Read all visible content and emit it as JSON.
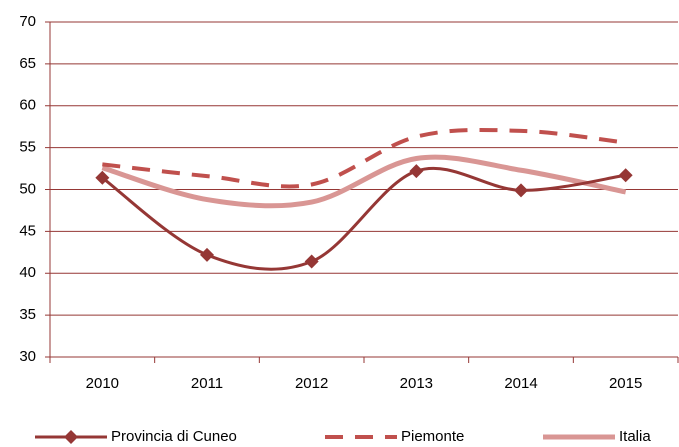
{
  "chart_data": {
    "type": "line",
    "categories": [
      "2010",
      "2011",
      "2012",
      "2013",
      "2014",
      "2015"
    ],
    "series": [
      {
        "name": "Provincia di Cuneo",
        "color": "#953735",
        "style": "solid-diamond",
        "values": [
          51.4,
          42.2,
          41.4,
          52.2,
          49.9,
          51.7
        ]
      },
      {
        "name": "Piemonte",
        "color": "#c0504d",
        "style": "dashed",
        "values": [
          53.0,
          51.6,
          50.6,
          56.3,
          57.0,
          55.6
        ]
      },
      {
        "name": "Italia",
        "color": "#d99694",
        "style": "thick",
        "values": [
          52.6,
          48.8,
          48.5,
          53.7,
          52.3,
          49.7
        ]
      }
    ],
    "ylim": [
      30,
      70
    ],
    "yticks": [
      30,
      35,
      40,
      45,
      50,
      55,
      60,
      65,
      70
    ],
    "grid": true,
    "legend": "bottom",
    "smooth": true
  }
}
